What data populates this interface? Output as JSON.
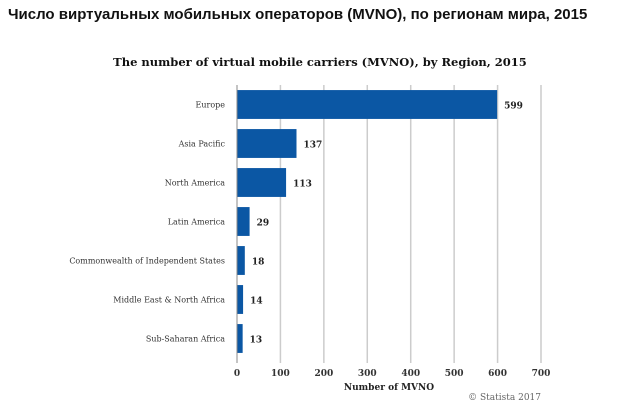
{
  "page_title": "Число виртуальных мобильных операторов (MVNO), по регионам мира, 2015",
  "source": "© Statista 2017",
  "chart_data": {
    "type": "bar",
    "orientation": "horizontal",
    "title": "The number of virtual mobile carriers (MVNO), by Region, 2015",
    "xlabel": "Number of MVNO",
    "ylabel": "",
    "categories": [
      "Europe",
      "Asia Pacific",
      "North America",
      "Latin America",
      "Commonwealth of Independent States",
      "Middle East & North Africa",
      "Sub-Saharan Africa"
    ],
    "values": [
      599,
      137,
      113,
      29,
      18,
      14,
      13
    ],
    "xlim": [
      0,
      700
    ],
    "xticks": [
      0,
      100,
      200,
      300,
      400,
      500,
      600,
      700
    ],
    "grid": true,
    "bar_color": "#0b57a4"
  }
}
